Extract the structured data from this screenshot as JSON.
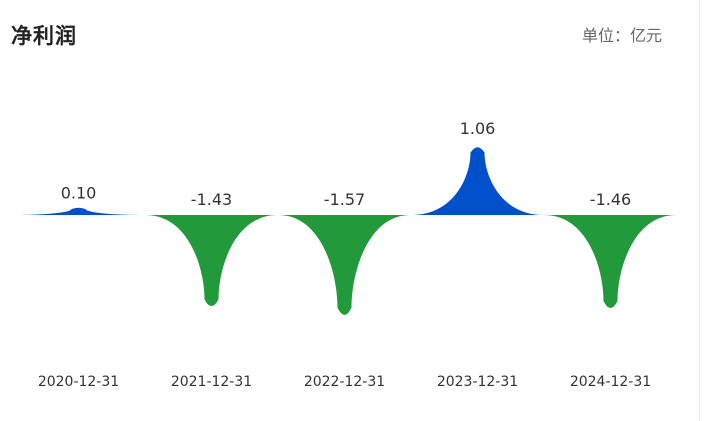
{
  "header": {
    "title": "净利润",
    "unit": "单位：亿元"
  },
  "colors": {
    "positive": "#0050CC",
    "negative": "#229A3B"
  },
  "chart_data": {
    "type": "bar",
    "categories": [
      "2020-12-31",
      "2021-12-31",
      "2022-12-31",
      "2023-12-31",
      "2024-12-31"
    ],
    "values": [
      0.1,
      -1.43,
      -1.57,
      1.06,
      -1.46
    ],
    "labels": [
      "0.10",
      "-1.43",
      "-1.57",
      "1.06",
      "-1.46"
    ],
    "title": "净利润",
    "unit": "单位：亿元"
  }
}
